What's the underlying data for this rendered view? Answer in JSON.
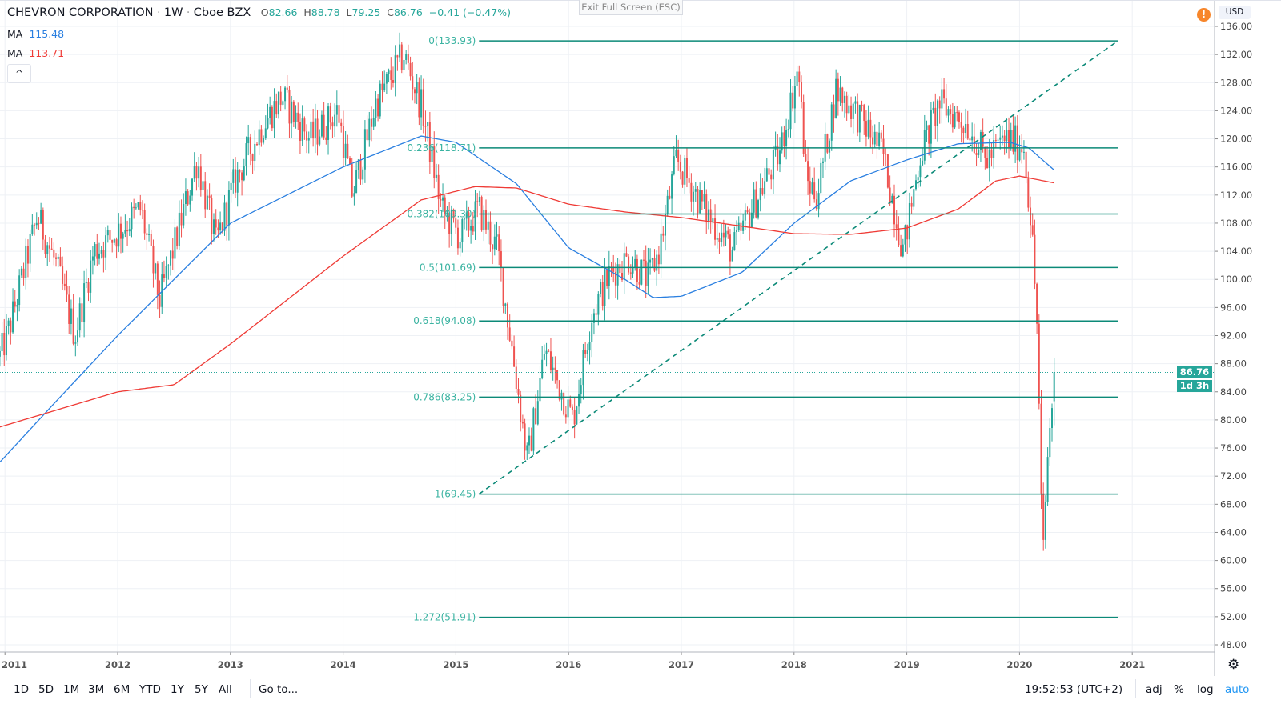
{
  "header": {
    "symbol": "CHEVRON CORPORATION",
    "interval": "1W",
    "exchange": "Cboe BZX",
    "sep": "·",
    "open_label": "O",
    "open": "82.66",
    "high_label": "H",
    "high": "88.78",
    "low_label": "L",
    "low": "79.25",
    "close_label": "C",
    "close": "86.76",
    "change": "−0.41 (−0.47%)",
    "exit_fullscreen": "Exit Full Screen (ESC)",
    "collapse_glyph": "^",
    "warning_glyph": "!",
    "currency": "USD"
  },
  "indicators": [
    {
      "label": "MA",
      "value": "115.48",
      "color": "#2a7fe0"
    },
    {
      "label": "MA",
      "value": "113.71",
      "color": "#ef3b36"
    }
  ],
  "last_price": {
    "value": "86.76",
    "countdown": "1d 3h"
  },
  "bottom": {
    "ranges": [
      "1D",
      "5D",
      "1M",
      "3M",
      "6M",
      "YTD",
      "1Y",
      "5Y",
      "All"
    ],
    "goto": "Go to...",
    "clock": "19:52:53 (UTC+2)",
    "adj": "adj",
    "percent": "%",
    "log": "log",
    "auto": "auto",
    "settings_icon": "gear-icon"
  },
  "chart_data": {
    "type": "candlestick",
    "title": "CHEVRON CORPORATION · 1W · Cboe BZX",
    "ylim": [
      48,
      136
    ],
    "y_ticks": [
      "48.00",
      "52.00",
      "56.00",
      "60.00",
      "64.00",
      "68.00",
      "72.00",
      "76.00",
      "80.00",
      "84.00",
      "88.00",
      "92.00",
      "96.00",
      "100.00",
      "104.00",
      "108.00",
      "112.00",
      "116.00",
      "120.00",
      "124.00",
      "128.00",
      "132.00",
      "136.00"
    ],
    "x_ticks": [
      "2011",
      "2012",
      "2013",
      "2014",
      "2015",
      "2016",
      "2017",
      "2018",
      "2019",
      "2020",
      "2021"
    ],
    "grid": true,
    "colors": {
      "up": "#26a69a",
      "down": "#ef5350",
      "fib": "#0c8a78",
      "fib_label": "#3ab3a1"
    },
    "approx_weekly_close_path": [
      [
        "2010-12-15",
        89
      ],
      [
        "2011-01-15",
        93
      ],
      [
        "2011-04-15",
        109
      ],
      [
        "2011-06-15",
        102
      ],
      [
        "2011-08-15",
        92
      ],
      [
        "2011-10-15",
        104
      ],
      [
        "2011-12-15",
        106
      ],
      [
        "2012-03-15",
        110
      ],
      [
        "2012-05-15",
        97
      ],
      [
        "2012-09-15",
        117
      ],
      [
        "2012-11-15",
        105
      ],
      [
        "2013-01-15",
        114
      ],
      [
        "2013-04-15",
        122
      ],
      [
        "2013-06-15",
        126
      ],
      [
        "2013-09-15",
        120
      ],
      [
        "2013-12-15",
        124
      ],
      [
        "2014-02-01",
        112
      ],
      [
        "2014-04-15",
        125
      ],
      [
        "2014-07-15",
        132
      ],
      [
        "2014-09-15",
        124
      ],
      [
        "2014-11-15",
        110
      ],
      [
        "2015-01-15",
        106
      ],
      [
        "2015-03-15",
        110
      ],
      [
        "2015-05-15",
        104
      ],
      [
        "2015-07-01",
        90
      ],
      [
        "2015-08-20",
        74
      ],
      [
        "2015-10-15",
        90
      ],
      [
        "2016-01-15",
        80
      ],
      [
        "2016-03-15",
        95
      ],
      [
        "2016-05-15",
        101
      ],
      [
        "2016-07-15",
        103
      ],
      [
        "2016-09-15",
        100
      ],
      [
        "2016-10-20",
        104
      ],
      [
        "2016-12-15",
        117
      ],
      [
        "2017-03-15",
        110
      ],
      [
        "2017-06-15",
        104
      ],
      [
        "2017-08-15",
        110
      ],
      [
        "2017-11-15",
        118
      ],
      [
        "2018-01-15",
        130
      ],
      [
        "2018-02-10",
        114
      ],
      [
        "2018-03-15",
        112
      ],
      [
        "2018-05-15",
        127
      ],
      [
        "2018-07-15",
        124
      ],
      [
        "2018-10-15",
        118
      ],
      [
        "2018-12-20",
        104
      ],
      [
        "2019-02-15",
        118
      ],
      [
        "2019-04-15",
        125
      ],
      [
        "2019-07-15",
        122
      ],
      [
        "2019-09-15",
        117
      ],
      [
        "2019-11-15",
        120
      ],
      [
        "2020-01-15",
        119
      ],
      [
        "2020-02-10",
        107
      ],
      [
        "2020-02-28",
        93
      ],
      [
        "2020-03-15",
        59
      ],
      [
        "2020-04-01",
        75
      ],
      [
        "2020-04-24",
        86.76
      ]
    ],
    "ma_series": [
      {
        "name": "MA",
        "last": 115.48,
        "color": "#2a7fe0",
        "points": [
          [
            "2010-12-15",
            74
          ],
          [
            "2011-06-01",
            82
          ],
          [
            "2012-01-01",
            92
          ],
          [
            "2013-01-01",
            108
          ],
          [
            "2014-01-01",
            116
          ],
          [
            "2014-09-10",
            120.4
          ],
          [
            "2015-01-01",
            119.5
          ],
          [
            "2015-07-15",
            113.6
          ],
          [
            "2016-01-01",
            104.5
          ],
          [
            "2016-07-01",
            100
          ],
          [
            "2016-10-01",
            97.4
          ],
          [
            "2017-01-01",
            97.6
          ],
          [
            "2017-07-15",
            101
          ],
          [
            "2018-01-01",
            108
          ],
          [
            "2018-07-01",
            114
          ],
          [
            "2019-01-01",
            117
          ],
          [
            "2019-06-15",
            119.3
          ],
          [
            "2019-12-01",
            119.5
          ],
          [
            "2020-02-01",
            118.7
          ],
          [
            "2020-04-24",
            115.48
          ]
        ]
      },
      {
        "name": "MA",
        "last": 113.71,
        "color": "#ef3b36",
        "points": [
          [
            "2010-12-15",
            79
          ],
          [
            "2012-01-01",
            84
          ],
          [
            "2012-07-01",
            85
          ],
          [
            "2013-01-01",
            90.8
          ],
          [
            "2014-01-01",
            103.3
          ],
          [
            "2014-09-10",
            111.3
          ],
          [
            "2015-03-01",
            113.2
          ],
          [
            "2015-07-15",
            113
          ],
          [
            "2016-01-01",
            110.7
          ],
          [
            "2016-07-01",
            109.6
          ],
          [
            "2017-01-01",
            108.8
          ],
          [
            "2018-01-01",
            106.5
          ],
          [
            "2018-07-01",
            106.4
          ],
          [
            "2019-01-01",
            107.3
          ],
          [
            "2019-06-15",
            110
          ],
          [
            "2019-10-15",
            114
          ],
          [
            "2020-01-01",
            114.7
          ],
          [
            "2020-04-24",
            113.71
          ]
        ]
      }
    ],
    "fibonacci": {
      "start": [
        "2015-03-15",
        69.45
      ],
      "end": [
        "2020-11-15",
        133.93
      ],
      "levels": [
        {
          "ratio": 0,
          "price": 133.93,
          "label": "0(133.93)"
        },
        {
          "ratio": 0.236,
          "price": 118.71,
          "label": "0.236(118.71)"
        },
        {
          "ratio": 0.382,
          "price": 109.3,
          "label": "0.382(109.30)"
        },
        {
          "ratio": 0.5,
          "price": 101.69,
          "label": "0.5(101.69)"
        },
        {
          "ratio": 0.618,
          "price": 94.08,
          "label": "0.618(94.08)"
        },
        {
          "ratio": 0.786,
          "price": 83.25,
          "label": "0.786(83.25)"
        },
        {
          "ratio": 1,
          "price": 69.45,
          "label": "1(69.45)"
        },
        {
          "ratio": 1.272,
          "price": 51.91,
          "label": "1.272(51.91)"
        }
      ]
    }
  }
}
